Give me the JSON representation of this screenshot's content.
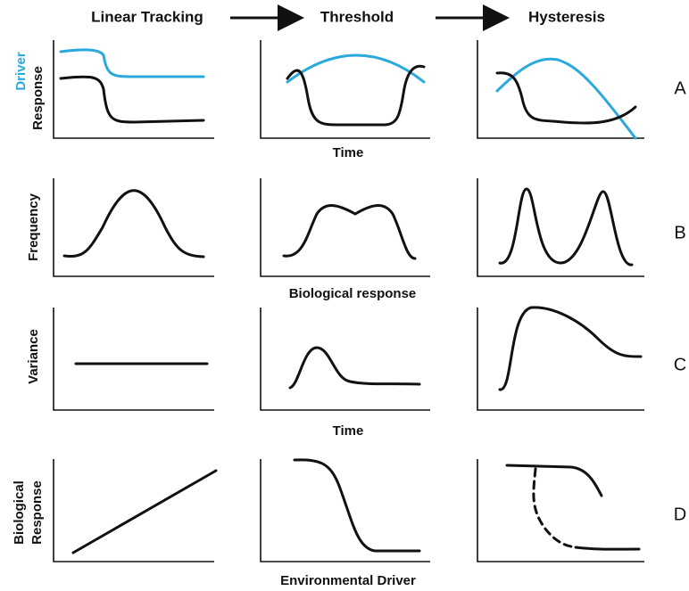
{
  "header": {
    "columns": [
      "Linear Tracking",
      "Threshold",
      "Hysteresis"
    ]
  },
  "rows": [
    {
      "letter": "A",
      "y_label": [
        "Driver",
        "Response"
      ],
      "x_label": "Time"
    },
    {
      "letter": "B",
      "y_label": [
        "Frequency"
      ],
      "x_label": "Biological response"
    },
    {
      "letter": "C",
      "y_label": [
        "Variance"
      ],
      "x_label": "Time"
    },
    {
      "letter": "D",
      "y_label": [
        "Biological",
        "Response"
      ],
      "x_label": "Environmental Driver"
    }
  ]
}
